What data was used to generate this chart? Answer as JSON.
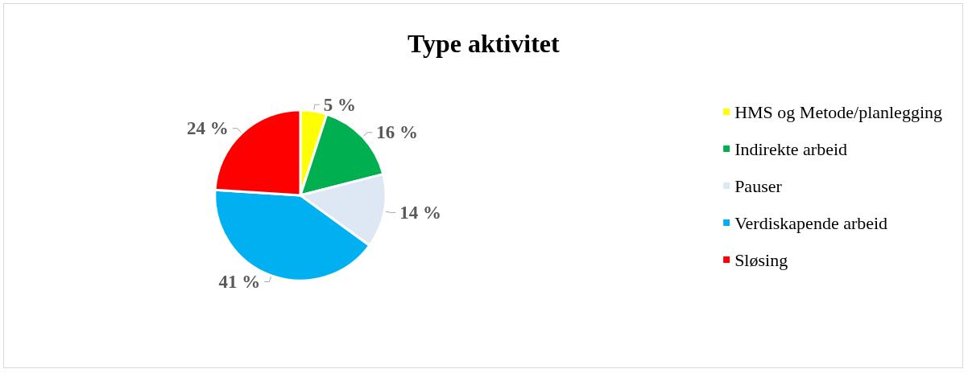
{
  "chart_data": {
    "type": "pie",
    "title": "Type aktivitet",
    "categories": [
      "HMS og Metode/planlegging",
      "Indirekte arbeid",
      "Pauser",
      "Verdiskapende arbeid",
      "Sløsing"
    ],
    "values": [
      5,
      16,
      14,
      41,
      24
    ],
    "colors": [
      "#ffff00",
      "#00b050",
      "#dde8f4",
      "#00b0f0",
      "#ff0000"
    ],
    "value_labels": [
      "5 %",
      "16 %",
      "14 %",
      "41 %",
      "24 %"
    ],
    "legend": "right"
  }
}
